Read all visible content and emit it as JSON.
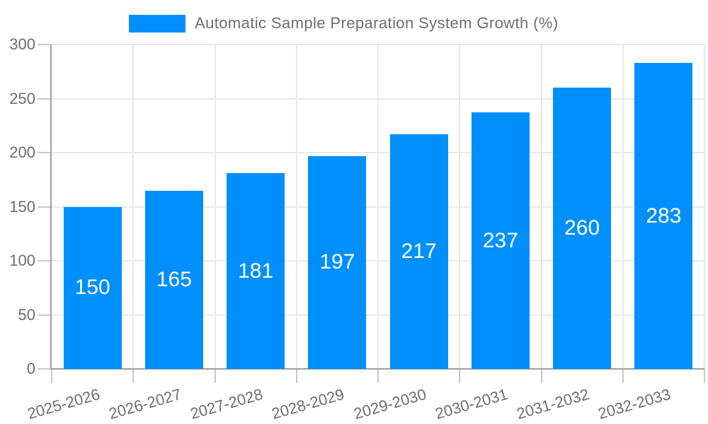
{
  "chart_data": {
    "type": "bar",
    "title": "Automatic Sample Preparation System Growth (%)",
    "legend_label": "Automatic Sample Preparation System Growth (%)",
    "legend_position": "top",
    "categories": [
      "2025-2026",
      "2026-2027",
      "2027-2028",
      "2028-2029",
      "2029-2030",
      "2030-2031",
      "2031-2032",
      "2032-2033"
    ],
    "values": [
      150,
      165,
      181,
      197,
      217,
      237,
      260,
      283
    ],
    "xlabel": "",
    "ylabel": "",
    "ylim": [
      0,
      300
    ],
    "yticks": [
      0,
      50,
      100,
      150,
      200,
      250,
      300
    ],
    "grid": true,
    "colors": {
      "bar": "#008FFB",
      "data_label": "#FFFFFF",
      "axis_text": "#6E6E6E",
      "grid_line": "#E8E8E8",
      "axis_line": "#9E9E9E",
      "tick": "#C9C9C9",
      "background": "#FFFFFF"
    }
  }
}
